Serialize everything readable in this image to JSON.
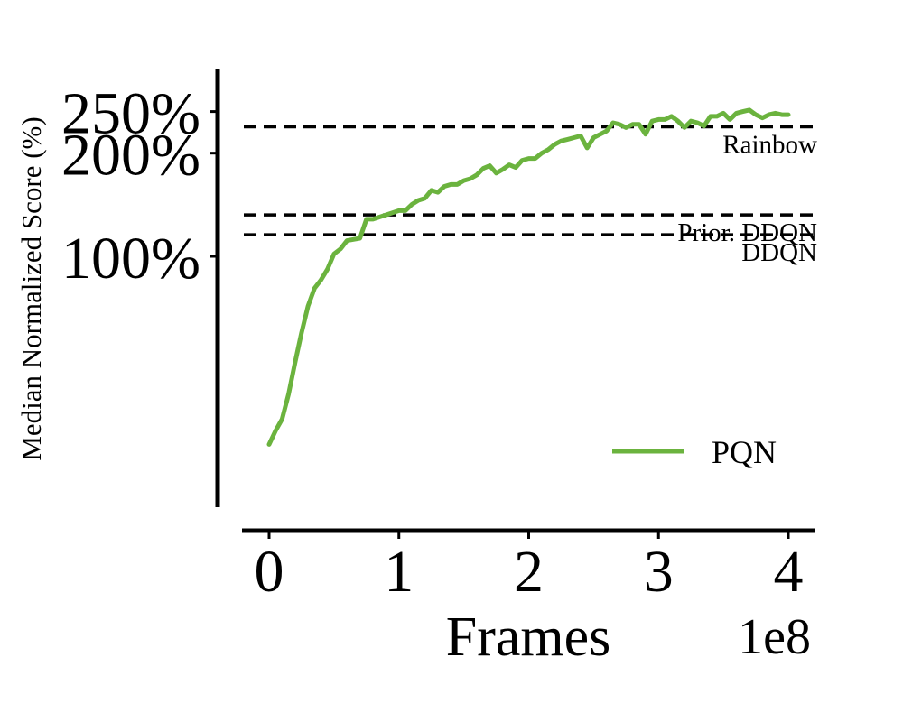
{
  "chart_data": {
    "type": "line",
    "xlabel": "Frames",
    "ylabel": "Median Normalized Score (%)",
    "x_offset_label": "1e8",
    "x_ticks": [
      0,
      1,
      2,
      3,
      4
    ],
    "y_ticks": [
      100,
      200,
      250
    ],
    "y_tick_labels": [
      "100%",
      "200%",
      "250%"
    ],
    "ylim": [
      0,
      275
    ],
    "xlim": [
      -0.2,
      4.2
    ],
    "y_scale": "sqrt",
    "grid": false,
    "legend_position": "lower-right",
    "series": [
      {
        "name": "PQN",
        "color": "#6bb33e",
        "x": [
          0.0,
          0.05,
          0.1,
          0.15,
          0.2,
          0.25,
          0.3,
          0.35,
          0.4,
          0.45,
          0.5,
          0.55,
          0.6,
          0.65,
          0.7,
          0.75,
          0.8,
          0.85,
          0.9,
          0.95,
          1.0,
          1.05,
          1.1,
          1.15,
          1.2,
          1.25,
          1.3,
          1.35,
          1.4,
          1.45,
          1.5,
          1.55,
          1.6,
          1.65,
          1.7,
          1.75,
          1.8,
          1.85,
          1.9,
          1.95,
          2.0,
          2.05,
          2.1,
          2.15,
          2.2,
          2.25,
          2.3,
          2.35,
          2.4,
          2.45,
          2.5,
          2.55,
          2.6,
          2.65,
          2.7,
          2.75,
          2.8,
          2.85,
          2.9,
          2.95,
          3.0,
          3.05,
          3.1,
          3.15,
          3.2,
          3.25,
          3.3,
          3.35,
          3.4,
          3.45,
          3.5,
          3.55,
          3.6,
          3.65,
          3.7,
          3.75,
          3.8,
          3.85,
          3.9,
          3.95,
          4.0
        ],
        "y": [
          6,
          9,
          12,
          20,
          33,
          48,
          64,
          76,
          82,
          90,
          102,
          106,
          113,
          114,
          115,
          132,
          132,
          134,
          136,
          138,
          140,
          140,
          146,
          150,
          152,
          160,
          158,
          164,
          166,
          166,
          170,
          172,
          176,
          183,
          186,
          178,
          182,
          187,
          184,
          192,
          194,
          194,
          200,
          204,
          210,
          214,
          216,
          218,
          220,
          206,
          218,
          222,
          226,
          236,
          234,
          230,
          234,
          234,
          222,
          238,
          240,
          240,
          244,
          238,
          230,
          238,
          236,
          232,
          244,
          244,
          248,
          240,
          248,
          250,
          252,
          246,
          242,
          246,
          248,
          246,
          246
        ]
      }
    ],
    "reference_lines": [
      {
        "label": "Rainbow",
        "value": 231
      },
      {
        "label": "Prior. DDQN",
        "value": 136
      },
      {
        "label": "DDQN",
        "value": 118
      }
    ]
  }
}
